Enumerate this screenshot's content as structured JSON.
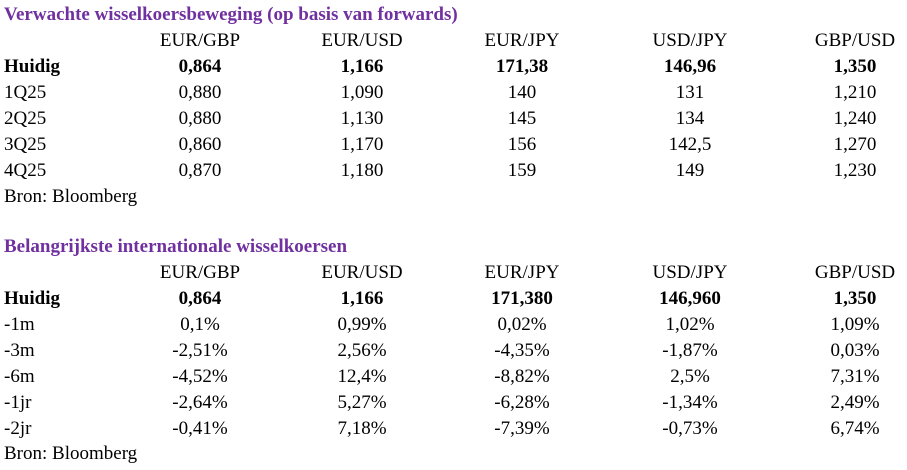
{
  "sections": [
    {
      "title": "Verwachte wisselkoersbeweging (op basis van forwards)",
      "columns": [
        "EUR/GBP",
        "EUR/USD",
        "EUR/JPY",
        "USD/JPY",
        "GBP/USD"
      ],
      "rows": [
        {
          "label": "Huidig",
          "values": [
            "0,864",
            "1,166",
            "171,38",
            "146,96",
            "1,350"
          ]
        },
        {
          "label": "1Q25",
          "values": [
            "0,880",
            "1,090",
            "140",
            "131",
            "1,210"
          ]
        },
        {
          "label": "2Q25",
          "values": [
            "0,880",
            "1,130",
            "145",
            "134",
            "1,240"
          ]
        },
        {
          "label": "3Q25",
          "values": [
            "0,860",
            "1,170",
            "156",
            "142,5",
            "1,270"
          ]
        },
        {
          "label": "4Q25",
          "values": [
            "0,870",
            "1,180",
            "159",
            "149",
            "1,230"
          ]
        }
      ],
      "source": "Bron: Bloomberg"
    },
    {
      "title": "Belangrijkste internationale wisselkoersen",
      "columns": [
        "EUR/GBP",
        "EUR/USD",
        "EUR/JPY",
        "USD/JPY",
        "GBP/USD"
      ],
      "rows": [
        {
          "label": "Huidig",
          "values": [
            "0,864",
            "1,166",
            "171,380",
            "146,960",
            "1,350"
          ]
        },
        {
          "label": "-1m",
          "values": [
            "0,1%",
            "0,99%",
            "0,02%",
            "1,02%",
            "1,09%"
          ]
        },
        {
          "label": "-3m",
          "values": [
            "-2,51%",
            "2,56%",
            "-4,35%",
            "-1,87%",
            "0,03%"
          ]
        },
        {
          "label": "-6m",
          "values": [
            "-4,52%",
            "12,4%",
            "-8,82%",
            "2,5%",
            "7,31%"
          ]
        },
        {
          "label": "-1jr",
          "values": [
            "-2,64%",
            "5,27%",
            "-6,28%",
            "-1,34%",
            "2,49%"
          ]
        },
        {
          "label": "-2jr",
          "values": [
            "-0,41%",
            "7,18%",
            "-7,39%",
            "-0,73%",
            "6,74%"
          ]
        }
      ],
      "source": "Bron: Bloomberg"
    }
  ]
}
